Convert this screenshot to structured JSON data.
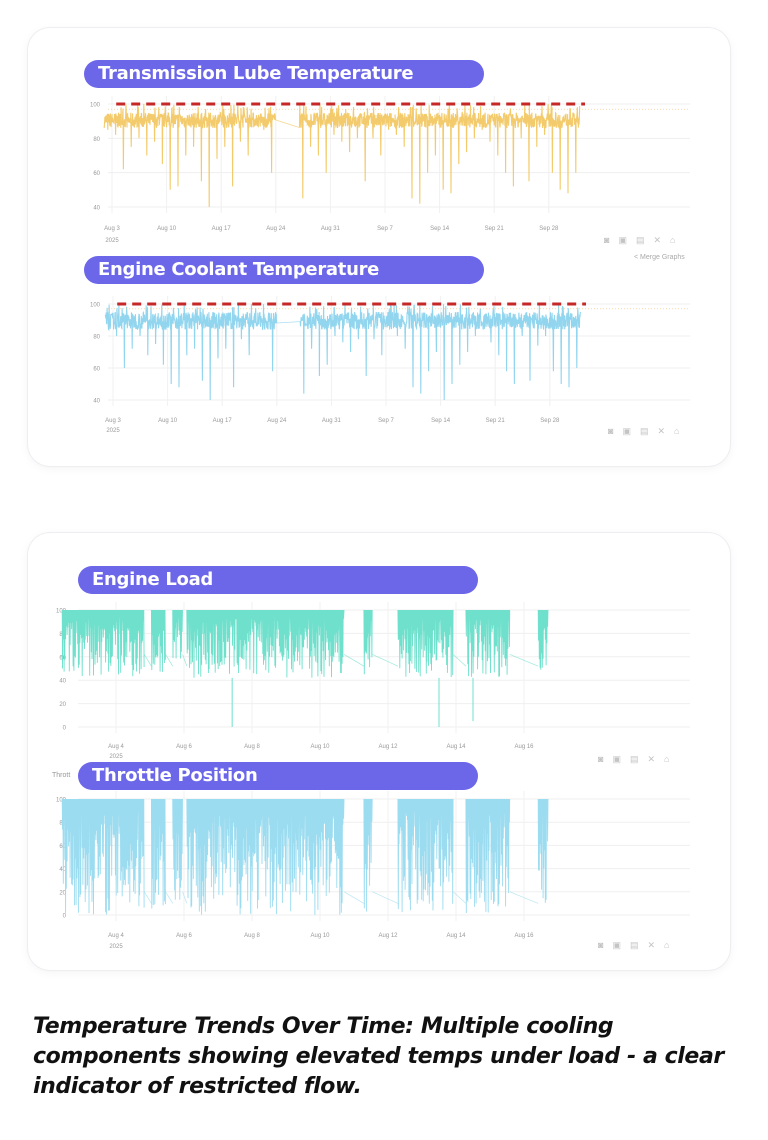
{
  "colors": {
    "pill": "#6c66e9",
    "alert": "#c62828",
    "transmission": "#f2c55c",
    "coolant": "#86d0ec",
    "load": "#6fe0cc",
    "throttle": "#9cdcf0"
  },
  "toolbar_icons": [
    "camera-icon",
    "zoom-icon",
    "autoscale-icon",
    "reset-icon",
    "home-icon"
  ],
  "merge_label": "Merge Graphs",
  "throttle_axis_title": "Thrott",
  "caption": "Temperature Trends Over Time: Multiple cooling components showing elevated temps under load - a clear indicator of restricted flow.",
  "chart_data": [
    {
      "type": "line",
      "title": "Transmission Lube Temperature",
      "ylim": [
        36,
        103
      ],
      "yticks": [
        100,
        80,
        60,
        40
      ],
      "xticks": [
        "Aug 3",
        "Aug 10",
        "Aug 17",
        "Aug 24",
        "Aug 31",
        "Sep 7",
        "Sep 14",
        "Sep 21",
        "Sep 28"
      ],
      "xtick_dates": [
        "2025-08-03",
        "2025-08-10",
        "2025-08-17",
        "2025-08-24",
        "2025-08-31",
        "2025-09-07",
        "2025-09-14",
        "2025-09-21",
        "2025-09-28"
      ],
      "year_label": "2025",
      "threshold": 100,
      "grid": true,
      "start_date": "2025-08-02",
      "daily_high": 100,
      "daily_typical": [
        86,
        95
      ],
      "daily_low": [
        85,
        82,
        62,
        75,
        80,
        70,
        78,
        65,
        50,
        52,
        70,
        75,
        55,
        40,
        68,
        75,
        52,
        78,
        70,
        88,
        85,
        60,
        null,
        null,
        null,
        45,
        75,
        70,
        60,
        82,
        78,
        72,
        80,
        55,
        80,
        70,
        85,
        82,
        75,
        45,
        42,
        60,
        70,
        50,
        48,
        65,
        72,
        80,
        85,
        78,
        70,
        60,
        52,
        80,
        55,
        75,
        82,
        60,
        50,
        48,
        60
      ]
    },
    {
      "type": "line",
      "title": "Engine Coolant Temperature",
      "ylim": [
        36,
        103
      ],
      "yticks": [
        100,
        80,
        60,
        40
      ],
      "xticks": [
        "Aug 3",
        "Aug 10",
        "Aug 17",
        "Aug 24",
        "Aug 31",
        "Sep 7",
        "Sep 14",
        "Sep 21",
        "Sep 28"
      ],
      "xtick_dates": [
        "2025-08-03",
        "2025-08-10",
        "2025-08-17",
        "2025-08-24",
        "2025-08-31",
        "2025-09-07",
        "2025-09-14",
        "2025-09-21",
        "2025-09-28"
      ],
      "year_label": "2025",
      "threshold": 100,
      "grid": true,
      "start_date": "2025-08-02",
      "daily_high": 100,
      "daily_typical": [
        84,
        95
      ],
      "daily_low": [
        84,
        80,
        60,
        72,
        80,
        68,
        75,
        62,
        50,
        48,
        68,
        72,
        52,
        40,
        66,
        72,
        48,
        78,
        68,
        86,
        84,
        58,
        null,
        null,
        null,
        44,
        72,
        55,
        62,
        80,
        76,
        70,
        78,
        55,
        78,
        68,
        84,
        80,
        72,
        48,
        44,
        58,
        70,
        40,
        50,
        62,
        70,
        80,
        84,
        76,
        68,
        58,
        50,
        80,
        52,
        74,
        80,
        58,
        50,
        48,
        60
      ]
    },
    {
      "type": "line",
      "title": "Engine Load",
      "ylim": [
        0,
        100
      ],
      "yticks": [
        100,
        80,
        60,
        40,
        20,
        0
      ],
      "xticks": [
        "Aug 4",
        "Aug 6",
        "Aug 8",
        "Aug 10",
        "Aug 12",
        "Aug 14",
        "Aug 16"
      ],
      "xtick_dates": [
        "2025-08-04",
        "2025-08-06",
        "2025-08-08",
        "2025-08-10",
        "2025-08-12",
        "2025-08-14",
        "2025-08-16"
      ],
      "year_label": "2025",
      "grid": true,
      "range": [
        42,
        100
      ],
      "active_periods": [
        [
          "2025-08-02T10:00",
          "2025-08-04T20:00"
        ],
        [
          "2025-08-05T01:00",
          "2025-08-05T11:00"
        ],
        [
          "2025-08-05T16:00",
          "2025-08-05T23:00"
        ],
        [
          "2025-08-06T02:00",
          "2025-08-10T17:00"
        ],
        [
          "2025-08-11T07:00",
          "2025-08-11T13:00"
        ],
        [
          "2025-08-12T07:00",
          "2025-08-13T22:00"
        ],
        [
          "2025-08-14T07:00",
          "2025-08-15T14:00"
        ],
        [
          "2025-08-16T10:00",
          "2025-08-16T17:00"
        ]
      ],
      "spikes": [
        [
          "2025-08-07T10:00",
          0
        ],
        [
          "2025-08-13T12:00",
          0
        ],
        [
          "2025-08-14T12:00",
          5
        ]
      ]
    },
    {
      "type": "line",
      "title": "Throttle Position",
      "ylim": [
        0,
        100
      ],
      "yticks": [
        100,
        80,
        60,
        40,
        20,
        0
      ],
      "xticks": [
        "Aug 4",
        "Aug 6",
        "Aug 8",
        "Aug 10",
        "Aug 12",
        "Aug 14",
        "Aug 16"
      ],
      "xtick_dates": [
        "2025-08-04",
        "2025-08-06",
        "2025-08-08",
        "2025-08-10",
        "2025-08-12",
        "2025-08-14",
        "2025-08-16"
      ],
      "year_label": "2025",
      "grid": true,
      "range": [
        0,
        100
      ],
      "active_periods": [
        [
          "2025-08-02T10:00",
          "2025-08-04T20:00"
        ],
        [
          "2025-08-05T01:00",
          "2025-08-05T11:00"
        ],
        [
          "2025-08-05T16:00",
          "2025-08-05T23:00"
        ],
        [
          "2025-08-06T02:00",
          "2025-08-10T17:00"
        ],
        [
          "2025-08-11T07:00",
          "2025-08-11T13:00"
        ],
        [
          "2025-08-12T07:00",
          "2025-08-13T22:00"
        ],
        [
          "2025-08-14T07:00",
          "2025-08-15T14:00"
        ],
        [
          "2025-08-16T10:00",
          "2025-08-16T17:00"
        ]
      ],
      "spikes": []
    }
  ]
}
